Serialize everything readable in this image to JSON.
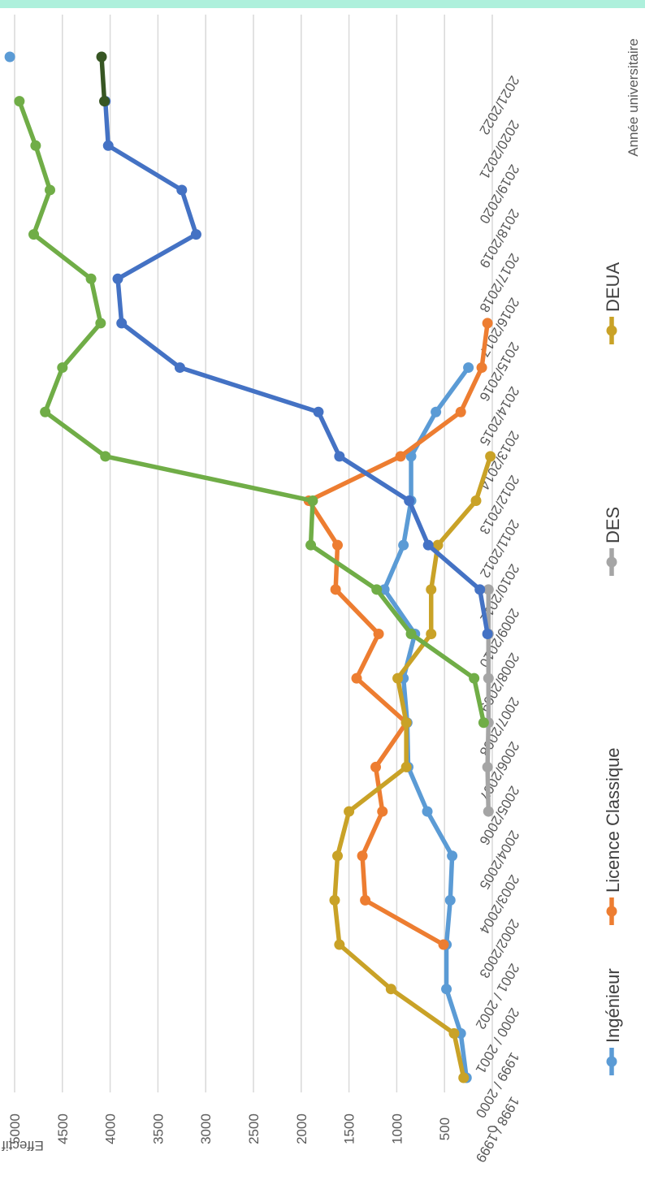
{
  "chart_data": {
    "type": "line",
    "orientation": "rotated 90 degrees clockwise",
    "ylabel": "Effectif",
    "xlabel": "Année universitaire",
    "ylim": [
      0,
      5000
    ],
    "yticks": [
      0,
      500,
      1000,
      1500,
      2000,
      2500,
      3000,
      3500,
      4000,
      4500,
      5000
    ],
    "grid": true,
    "legend_position": "right",
    "categories": [
      "1998 / 1999",
      "1999 / 2000",
      "2000 / 2001",
      "2001 / 2002",
      "2002/2003",
      "2003/2004",
      "2004/2005",
      "2005/2006",
      "2006/2007",
      "2007/2008",
      "2008/2009",
      "2009/2010",
      "2010/2011",
      "2011/2012",
      "2012/2013",
      "2013/2014",
      "2014/2015",
      "2015/2016",
      "2016/2017",
      "2017/2018",
      "2018/2019",
      "2019/2020",
      "2020/2021",
      "2021/2022"
    ],
    "series": [
      {
        "name": "Ingénieur",
        "color": "#5b9bd5",
        "legend": true,
        "values": [
          270,
          330,
          480,
          480,
          440,
          420,
          680,
          880,
          890,
          930,
          810,
          1130,
          930,
          850,
          850,
          590,
          250,
          null,
          null,
          null,
          null,
          null,
          null,
          5050
        ]
      },
      {
        "name": "Licence Classique",
        "color": "#ed7d31",
        "legend": true,
        "values": [
          null,
          null,
          null,
          510,
          1330,
          1360,
          1150,
          1220,
          900,
          1420,
          1190,
          1640,
          1620,
          1920,
          960,
          330,
          110,
          50,
          null,
          null,
          null,
          null,
          null,
          null
        ]
      },
      {
        "name": "DES",
        "color": "#a5a5a5",
        "legend": true,
        "values": [
          null,
          null,
          null,
          null,
          null,
          null,
          40,
          50,
          40,
          40,
          40,
          40,
          null,
          null,
          null,
          null,
          null,
          null,
          null,
          null,
          null,
          null,
          null,
          null
        ]
      },
      {
        "name": "DEUA",
        "color": "#c9a227",
        "legend": true,
        "values": [
          300,
          400,
          1060,
          1600,
          1650,
          1620,
          1500,
          900,
          900,
          990,
          640,
          640,
          570,
          170,
          20,
          null,
          null,
          null,
          null,
          null,
          null,
          null,
          null,
          null
        ]
      },
      {
        "name": "",
        "color": "#70ad47",
        "legend": false,
        "values": [
          null,
          null,
          null,
          null,
          null,
          null,
          null,
          null,
          90,
          190,
          850,
          1210,
          1900,
          1880,
          4050,
          4680,
          4500,
          4100,
          4200,
          4800,
          4630,
          4780,
          4950,
          null
        ]
      },
      {
        "name": "",
        "color": "#4472c4",
        "legend": false,
        "values": [
          null,
          null,
          null,
          null,
          null,
          null,
          null,
          null,
          null,
          null,
          50,
          130,
          670,
          870,
          1600,
          1820,
          3270,
          3880,
          3920,
          3100,
          3250,
          4020,
          4050,
          null
        ]
      },
      {
        "name": "",
        "color": "#375623",
        "legend": false,
        "values": [
          null,
          null,
          null,
          null,
          null,
          null,
          null,
          null,
          null,
          null,
          null,
          null,
          null,
          null,
          null,
          null,
          null,
          null,
          null,
          null,
          null,
          null,
          4060,
          4090
        ]
      }
    ]
  }
}
